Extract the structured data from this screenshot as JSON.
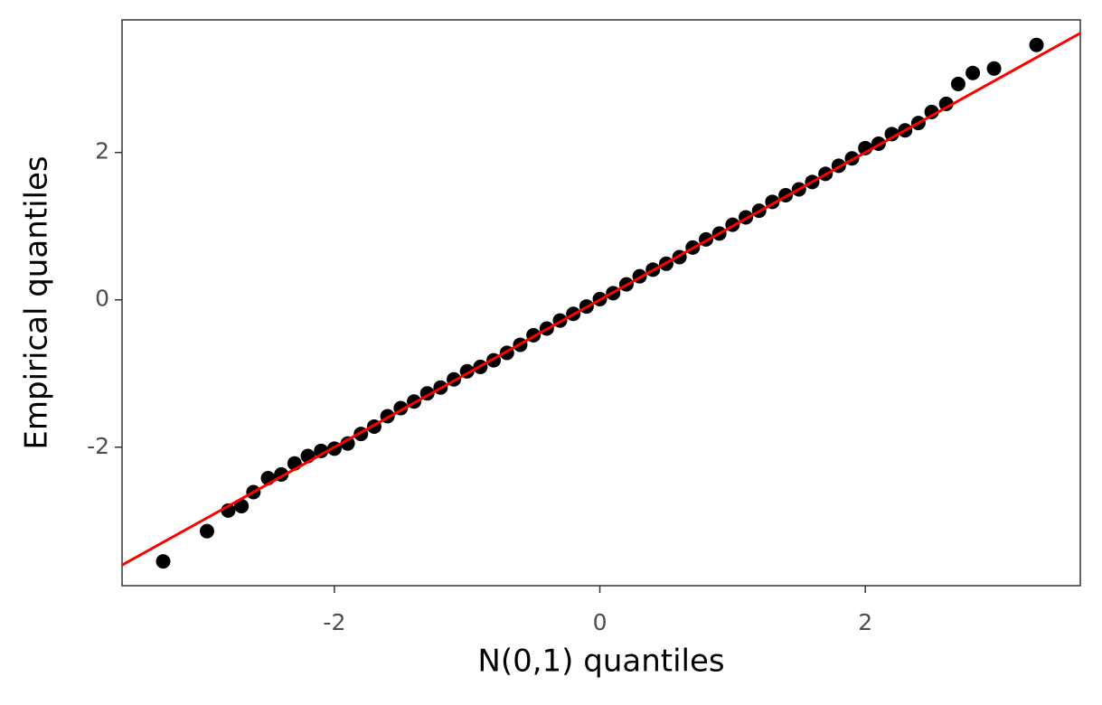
{
  "chart_data": {
    "type": "scatter",
    "xlabel": "N(0,1) quantiles",
    "ylabel": "Empirical quantiles",
    "x": [
      -3.29,
      -2.96,
      -2.8,
      -2.7,
      -2.61,
      -2.5,
      -2.4,
      -2.3,
      -2.2,
      -2.1,
      -2.0,
      -1.9,
      -1.8,
      -1.7,
      -1.6,
      -1.5,
      -1.4,
      -1.3,
      -1.2,
      -1.1,
      -1.0,
      -0.9,
      -0.8,
      -0.7,
      -0.6,
      -0.5,
      -0.4,
      -0.3,
      -0.2,
      -0.1,
      0,
      0.1,
      0.2,
      0.3,
      0.4,
      0.5,
      0.6,
      0.7,
      0.8,
      0.9,
      1.0,
      1.1,
      1.2,
      1.3,
      1.4,
      1.5,
      1.6,
      1.7,
      1.8,
      1.9,
      2.0,
      2.1,
      2.2,
      2.3,
      2.4,
      2.5,
      2.61,
      2.7,
      2.81,
      2.97,
      3.29
    ],
    "values": [
      -3.55,
      -3.14,
      -2.86,
      -2.8,
      -2.61,
      -2.42,
      -2.37,
      -2.22,
      -2.12,
      -2.05,
      -2.02,
      -1.95,
      -1.82,
      -1.72,
      -1.58,
      -1.47,
      -1.38,
      -1.27,
      -1.19,
      -1.08,
      -0.97,
      -0.91,
      -0.82,
      -0.72,
      -0.61,
      -0.48,
      -0.39,
      -0.28,
      -0.19,
      -0.09,
      0.01,
      0.09,
      0.21,
      0.32,
      0.41,
      0.49,
      0.58,
      0.71,
      0.82,
      0.9,
      1.02,
      1.12,
      1.21,
      1.33,
      1.42,
      1.5,
      1.6,
      1.71,
      1.82,
      1.92,
      2.06,
      2.12,
      2.25,
      2.3,
      2.4,
      2.55,
      2.66,
      2.93,
      3.08,
      3.14,
      3.46
    ],
    "color": "#000000",
    "reference_line": {
      "slope": 1,
      "intercept": 0,
      "color": "#ff0000"
    },
    "xlim": [
      -3.6,
      3.62
    ],
    "ylim": [
      -3.88,
      3.8
    ],
    "xticks": [
      -2,
      0,
      2
    ],
    "yticks": [
      -2,
      0,
      2
    ],
    "grid": false
  }
}
